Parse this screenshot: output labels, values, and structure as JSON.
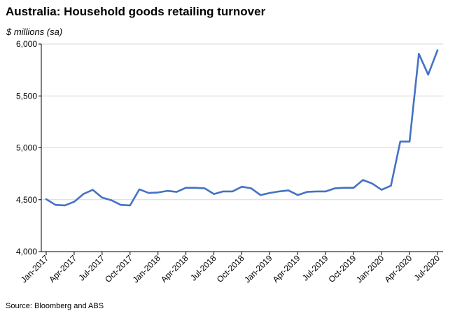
{
  "chart_data": {
    "type": "line",
    "title": "Australia: Household goods retailing turnover",
    "ylabel": "$ millions (sa)",
    "xlabel": "",
    "source": "Source: Bloomberg and ABS",
    "ylim": [
      4000,
      6000
    ],
    "yticks": [
      4000,
      4500,
      5000,
      5500,
      6000
    ],
    "ytick_labels": [
      "4,000",
      "4,500",
      "5,000",
      "5,500",
      "6,000"
    ],
    "grid": "horizontal",
    "legend": "none",
    "x": [
      "Jan-2017",
      "Feb-2017",
      "Mar-2017",
      "Apr-2017",
      "May-2017",
      "Jun-2017",
      "Jul-2017",
      "Aug-2017",
      "Sep-2017",
      "Oct-2017",
      "Nov-2017",
      "Dec-2017",
      "Jan-2018",
      "Feb-2018",
      "Mar-2018",
      "Apr-2018",
      "May-2018",
      "Jun-2018",
      "Jul-2018",
      "Aug-2018",
      "Sep-2018",
      "Oct-2018",
      "Nov-2018",
      "Dec-2018",
      "Jan-2019",
      "Feb-2019",
      "Mar-2019",
      "Apr-2019",
      "May-2019",
      "Jun-2019",
      "Jul-2019",
      "Aug-2019",
      "Sep-2019",
      "Oct-2019",
      "Nov-2019",
      "Dec-2019",
      "Jan-2020",
      "Feb-2020",
      "Mar-2020",
      "Apr-2020",
      "May-2020",
      "Jun-2020",
      "Jul-2020"
    ],
    "xtick_labels": [
      "Jan-2017",
      "Apr-2017",
      "Jul-2017",
      "Oct-2017",
      "Jan-2018",
      "Apr-2018",
      "Jul-2018",
      "Oct-2018",
      "Jan-2019",
      "Apr-2019",
      "Jul-2019",
      "Oct-2019",
      "Jan-2020",
      "Apr-2020",
      "Jul-2020"
    ],
    "series": [
      {
        "color": "#4472C4",
        "values": [
          4505,
          4450,
          4445,
          4480,
          4555,
          4595,
          4520,
          4495,
          4450,
          4445,
          4600,
          4565,
          4570,
          4585,
          4575,
          4615,
          4615,
          4610,
          4555,
          4580,
          4580,
          4625,
          4610,
          4545,
          4565,
          4580,
          4590,
          4545,
          4575,
          4580,
          4580,
          4610,
          4615,
          4615,
          4690,
          4655,
          4595,
          4635,
          5060,
          5060,
          5905,
          5705,
          5940
        ]
      }
    ]
  }
}
